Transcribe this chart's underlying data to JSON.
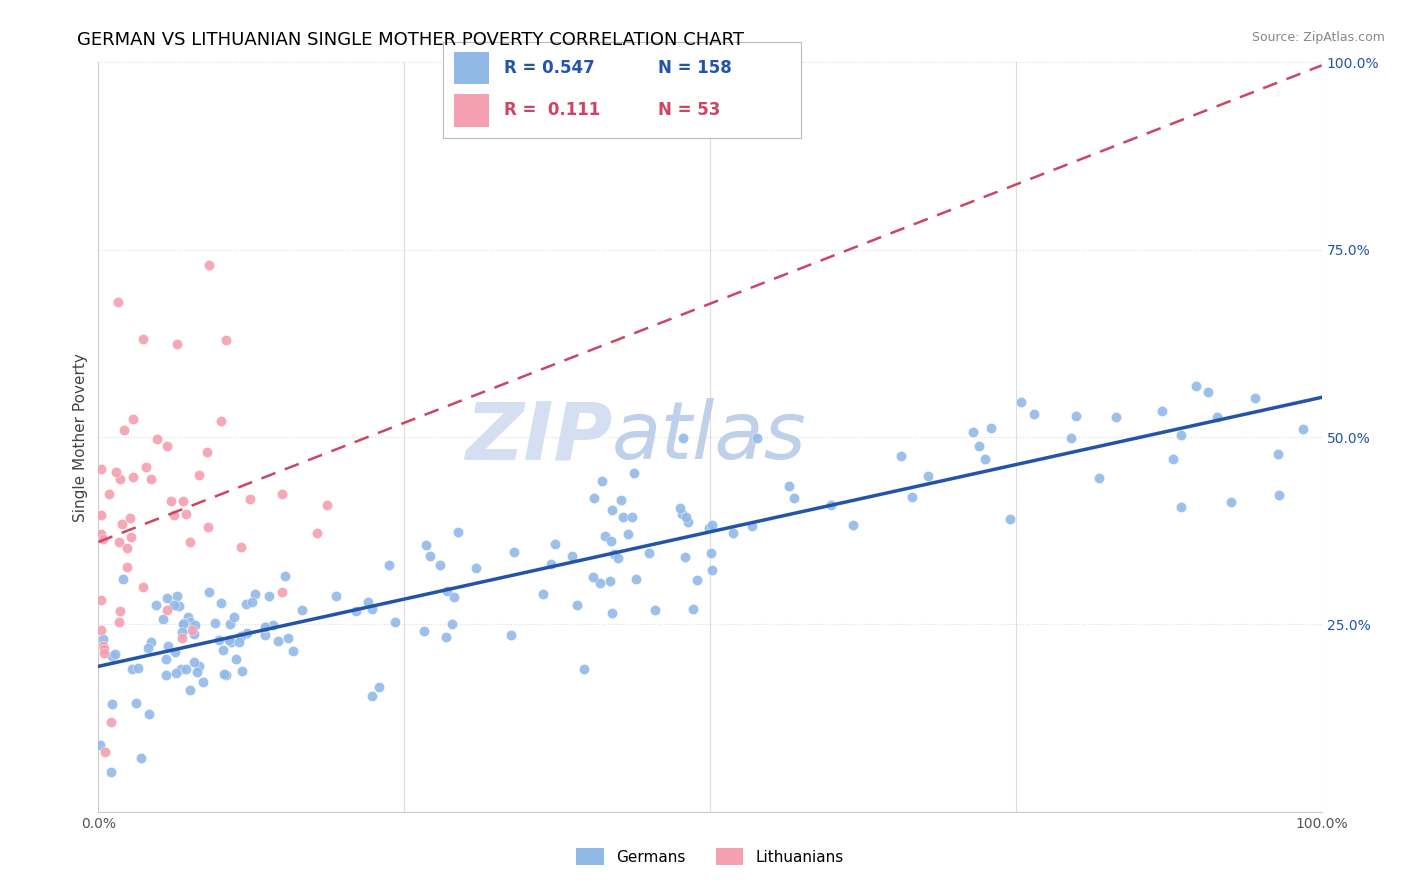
{
  "title": "GERMAN VS LITHUANIAN SINGLE MOTHER POVERTY CORRELATION CHART",
  "source": "Source: ZipAtlas.com",
  "ylabel": "Single Mother Poverty",
  "xlim": [
    0.0,
    1.0
  ],
  "ylim": [
    0.0,
    1.0
  ],
  "x_ticks": [
    0.0,
    0.25,
    0.5,
    0.75,
    1.0
  ],
  "x_tick_labels": [
    "0.0%",
    "",
    "",
    "",
    "100.0%"
  ],
  "y_ticks": [
    0.0,
    0.25,
    0.5,
    0.75,
    1.0
  ],
  "y_tick_labels_right": [
    "",
    "25.0%",
    "50.0%",
    "75.0%",
    "100.0%"
  ],
  "german_R": 0.547,
  "german_N": 158,
  "lithuanian_R": 0.111,
  "lithuanian_N": 53,
  "german_color": "#91B9E8",
  "lithuanian_color": "#F4A0B0",
  "german_line_color": "#2255AA",
  "lithuanian_line_color": "#CC4466",
  "watermark_color": "#C8D8F0",
  "grid_color": "#DDDDDD",
  "title_fontsize": 13,
  "label_fontsize": 11,
  "tick_fontsize": 10,
  "source_fontsize": 9
}
